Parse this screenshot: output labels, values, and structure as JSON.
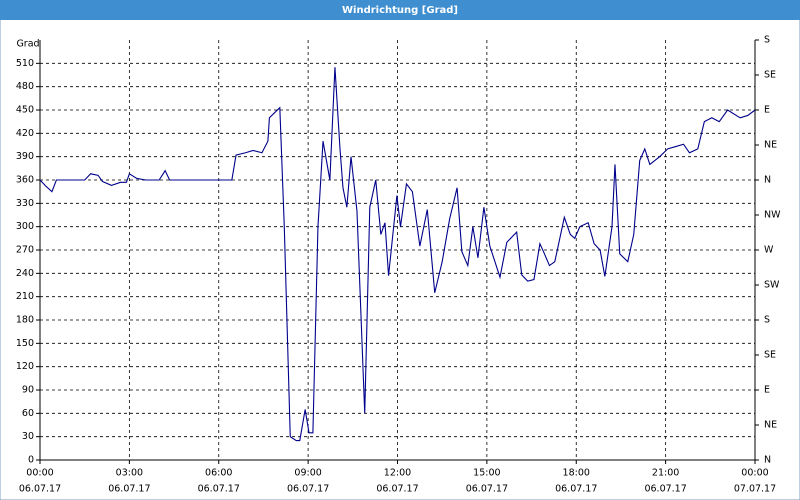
{
  "chart_data": {
    "type": "line",
    "title": "Windrichtung [Grad]",
    "y_label": "Grad",
    "color": "#00008b",
    "grid": true,
    "xlim": [
      0,
      24
    ],
    "xticks": [
      {
        "value": 0,
        "label": "00:00"
      },
      {
        "value": 3,
        "label": "03:00"
      },
      {
        "value": 6,
        "label": "06:00"
      },
      {
        "value": 9,
        "label": "09:00"
      },
      {
        "value": 12,
        "label": "12:00"
      },
      {
        "value": 15,
        "label": "15:00"
      },
      {
        "value": 18,
        "label": "18:00"
      },
      {
        "value": 21,
        "label": "21:00"
      },
      {
        "value": 24,
        "label": "00:00"
      }
    ],
    "xtick_dates": [
      "06.07.17",
      "06.07.17",
      "06.07.17",
      "06.07.17",
      "06.07.17",
      "06.07.17",
      "06.07.17",
      "06.07.17",
      "07.07.17"
    ],
    "ylim": [
      0,
      540
    ],
    "yticks": [
      0,
      30,
      60,
      90,
      120,
      150,
      180,
      210,
      240,
      270,
      300,
      330,
      360,
      390,
      420,
      450,
      480,
      510
    ],
    "y2lim": [
      0,
      540
    ],
    "y2ticks": [
      {
        "value": 0,
        "label": "N"
      },
      {
        "value": 45,
        "label": "NE"
      },
      {
        "value": 90,
        "label": "E"
      },
      {
        "value": 135,
        "label": "SE"
      },
      {
        "value": 180,
        "label": "S"
      },
      {
        "value": 225,
        "label": "SW"
      },
      {
        "value": 270,
        "label": "W"
      },
      {
        "value": 315,
        "label": "NW"
      },
      {
        "value": 360,
        "label": "N"
      },
      {
        "value": 405,
        "label": "NE"
      },
      {
        "value": 450,
        "label": "E"
      },
      {
        "value": 495,
        "label": "SE"
      },
      {
        "value": 540,
        "label": "S"
      }
    ],
    "x": [
      0,
      0.2,
      0.4,
      0.55,
      1.5,
      1.7,
      1.95,
      2.1,
      2.4,
      2.7,
      2.9,
      3.0,
      3.25,
      3.55,
      4.0,
      4.2,
      4.35,
      6.44,
      6.58,
      6.9,
      7.15,
      7.45,
      7.65,
      7.7,
      8.05,
      8.2,
      8.4,
      8.6,
      8.72,
      8.9,
      9.03,
      9.16,
      9.33,
      9.5,
      9.73,
      9.9,
      10.07,
      10.17,
      10.3,
      10.44,
      10.64,
      10.9,
      11.07,
      11.27,
      11.44,
      11.58,
      11.7,
      11.98,
      12.1,
      12.3,
      12.5,
      12.75,
      13.0,
      13.25,
      13.5,
      13.75,
      14.0,
      14.16,
      14.36,
      14.53,
      14.7,
      14.9,
      15.1,
      15.44,
      15.67,
      16.0,
      16.17,
      16.37,
      16.58,
      16.78,
      16.9,
      17.1,
      17.28,
      17.6,
      17.8,
      17.95,
      18.12,
      18.4,
      18.6,
      18.8,
      18.96,
      19.2,
      19.3,
      19.46,
      19.73,
      19.93,
      20.13,
      20.3,
      20.47,
      20.8,
      21.07,
      21.34,
      21.6,
      21.8,
      22.08,
      22.3,
      22.55,
      22.8,
      23.08,
      23.5,
      23.76,
      24.0
    ],
    "values": [
      360,
      352,
      345,
      360,
      360,
      368,
      366,
      358,
      353,
      357,
      357,
      368,
      362,
      360,
      360,
      372,
      360,
      360,
      392,
      395,
      398,
      395,
      410,
      440,
      453,
      300,
      30,
      25,
      25,
      65,
      35,
      35,
      300,
      410,
      360,
      505,
      400,
      350,
      325,
      390,
      320,
      60,
      325,
      360,
      290,
      305,
      237,
      340,
      300,
      355,
      345,
      275,
      322,
      215,
      255,
      310,
      350,
      268,
      250,
      300,
      260,
      325,
      275,
      235,
      280,
      293,
      238,
      230,
      232,
      278,
      268,
      250,
      255,
      312,
      290,
      285,
      300,
      305,
      278,
      270,
      236,
      300,
      380,
      265,
      255,
      290,
      385,
      400,
      380,
      390,
      400,
      403,
      406,
      395,
      400,
      435,
      440,
      435,
      450,
      440,
      443,
      450
    ]
  }
}
